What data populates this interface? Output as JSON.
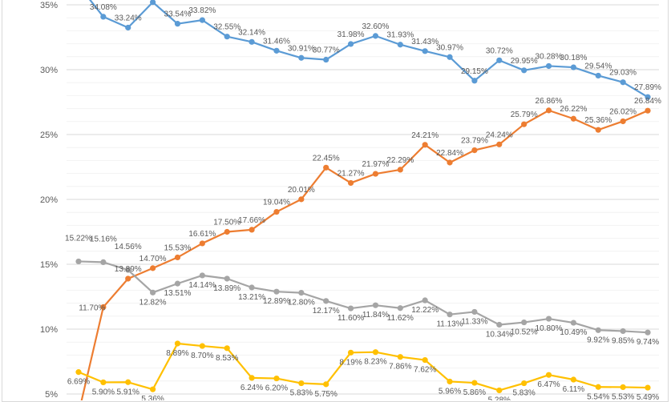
{
  "chart_data": {
    "type": "line",
    "title": "",
    "xlabel": "",
    "ylabel": "",
    "ylim": [
      5,
      35
    ],
    "y_ticks": [
      "5%",
      "10%",
      "15%",
      "20%",
      "25%",
      "30%",
      "35%"
    ],
    "grid": true,
    "legend": "none",
    "point_count": 24,
    "series": [
      {
        "color": "#5B9BD5",
        "label_pos": "above",
        "values": [
          36.5,
          34.08,
          33.24,
          35.2,
          33.54,
          33.82,
          32.55,
          32.14,
          31.46,
          30.91,
          30.77,
          31.98,
          32.6,
          31.93,
          31.43,
          30.97,
          29.15,
          30.72,
          29.95,
          30.28,
          30.18,
          29.54,
          29.03,
          27.89
        ],
        "labels": [
          "",
          "34.08%",
          "33.24%",
          "",
          "33.54%",
          "33.82%",
          "32.55%",
          "32.14%",
          "31.46%",
          "30.91%",
          "30.77%",
          "31.98%",
          "32.60%",
          "31.93%",
          "31.43%",
          "30.97%",
          "29.15%",
          "30.72%",
          "29.95%",
          "30.28%",
          "30.18%",
          "29.54%",
          "29.03%",
          "27.89%"
        ]
      },
      {
        "color": "#ED7D31",
        "label_pos": "above",
        "values": [
          3.5,
          11.7,
          13.89,
          14.7,
          15.53,
          16.61,
          17.5,
          17.66,
          19.04,
          20.01,
          22.45,
          21.27,
          21.97,
          22.29,
          24.21,
          22.84,
          23.79,
          24.24,
          25.79,
          26.86,
          26.22,
          25.36,
          26.02,
          26.84
        ],
        "labels": [
          "",
          "11.70%",
          "13.89%",
          "14.70%",
          "15.53%",
          "16.61%",
          "17.50%",
          "17.66%",
          "19.04%",
          "20.01%",
          "22.45%",
          "21.27%",
          "21.97%",
          "22.29%",
          "24.21%",
          "22.84%",
          "23.79%",
          "24.24%",
          "25.79%",
          "26.86%",
          "26.22%",
          "25.36%",
          "26.02%",
          "26.84%"
        ]
      },
      {
        "color": "#A5A5A5",
        "label_pos": "below",
        "values": [
          15.22,
          15.16,
          14.56,
          12.82,
          13.51,
          14.14,
          13.89,
          13.21,
          12.89,
          12.8,
          12.17,
          11.6,
          11.84,
          11.62,
          12.22,
          11.13,
          11.33,
          10.34,
          10.52,
          10.8,
          10.49,
          9.92,
          9.85,
          9.74
        ],
        "labels": [
          "15.22%",
          "15.16%",
          "14.56%",
          "12.82%",
          "13.51%",
          "14.14%",
          "13.89%",
          "13.21%",
          "12.89%",
          "12.80%",
          "12.17%",
          "11.60%",
          "11.84%",
          "11.62%",
          "12.22%",
          "11.13%",
          "11.33%",
          "10.34%",
          "10.52%",
          "10.80%",
          "10.49%",
          "9.92%",
          "9.85%",
          "9.74%"
        ]
      },
      {
        "color": "#FFC000",
        "label_pos": "below",
        "values": [
          6.69,
          5.9,
          5.91,
          5.36,
          8.89,
          8.7,
          8.53,
          6.24,
          6.2,
          5.83,
          5.75,
          8.19,
          8.23,
          7.86,
          7.62,
          5.96,
          5.86,
          5.28,
          5.83,
          6.47,
          6.11,
          5.54,
          5.53,
          5.49
        ],
        "labels": [
          "6.69%",
          "5.90%",
          "5.91%",
          "5.36%",
          "8.89%",
          "8.70%",
          "8.53%",
          "6.24%",
          "6.20%",
          "5.83%",
          "5.75%",
          "8.19%",
          "8.23%",
          "7.86%",
          "7.62%",
          "5.96%",
          "5.86%",
          "5.28%",
          "5.83%",
          "6.47%",
          "6.11%",
          "5.54%",
          "5.53%",
          "5.49%"
        ]
      }
    ]
  }
}
